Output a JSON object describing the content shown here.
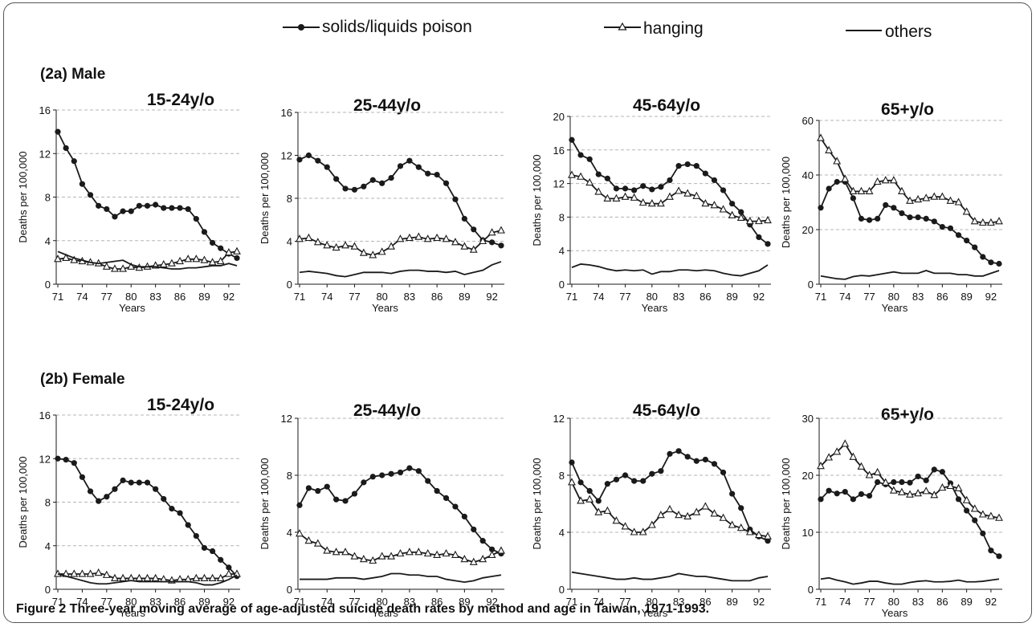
{
  "legend": [
    {
      "name": "solids/liquids poison",
      "marker": "circle"
    },
    {
      "name": "hanging",
      "marker": "triangle"
    },
    {
      "name": "others",
      "marker": "none"
    }
  ],
  "sections": {
    "male": "(2a) Male",
    "female": "(2b) Female"
  },
  "caption": {
    "label": "Figure 2",
    "text": " Three-year moving average of age-adjusted suicide death rates by method and age in Taiwan, 1971-1993."
  },
  "x_ticks": [
    "71",
    "74",
    "77",
    "80",
    "83",
    "86",
    "89",
    "92"
  ],
  "colors": {
    "line": "#1a1a1a",
    "grid": "#b5b5b5",
    "frame": "#555555"
  },
  "chart_data": [
    {
      "type": "line",
      "panel": "male-15-24",
      "title": "15-24y/o",
      "xlabel": "Years",
      "ylabel": "Deaths per 100,000",
      "ylim": [
        0,
        16
      ],
      "yticks": [
        0,
        4,
        8,
        12,
        16
      ],
      "x": [
        71,
        72,
        73,
        74,
        75,
        76,
        77,
        78,
        79,
        80,
        81,
        82,
        83,
        84,
        85,
        86,
        87,
        88,
        89,
        90,
        91,
        92,
        93
      ],
      "series": [
        {
          "name": "solids/liquids poison",
          "values": [
            14.0,
            12.5,
            11.3,
            9.2,
            8.2,
            7.2,
            6.9,
            6.2,
            6.7,
            6.7,
            7.2,
            7.2,
            7.3,
            7.0,
            7.0,
            7.0,
            6.9,
            6.0,
            4.8,
            3.8,
            3.3,
            2.8,
            2.4
          ]
        },
        {
          "name": "hanging",
          "values": [
            2.3,
            2.4,
            2.2,
            2.1,
            2.0,
            1.9,
            1.6,
            1.4,
            1.4,
            1.6,
            1.5,
            1.6,
            1.7,
            1.8,
            1.9,
            2.1,
            2.3,
            2.3,
            2.2,
            2.0,
            2.1,
            2.9,
            3.0
          ]
        },
        {
          "name": "others",
          "values": [
            3.0,
            2.7,
            2.4,
            2.2,
            2.0,
            1.9,
            2.0,
            2.1,
            2.2,
            1.8,
            1.6,
            1.6,
            1.6,
            1.5,
            1.4,
            1.4,
            1.5,
            1.5,
            1.6,
            1.7,
            1.7,
            1.9,
            1.7
          ]
        }
      ]
    },
    {
      "type": "line",
      "panel": "male-25-44",
      "title": "25-44y/o",
      "xlabel": "Years",
      "ylabel": "Deaths per 100,000",
      "ylim": [
        0,
        16
      ],
      "yticks": [
        0,
        4,
        8,
        12,
        16
      ],
      "x": [
        71,
        72,
        73,
        74,
        75,
        76,
        77,
        78,
        79,
        80,
        81,
        82,
        83,
        84,
        85,
        86,
        87,
        88,
        89,
        90,
        91,
        92,
        93
      ],
      "series": [
        {
          "name": "solids/liquids poison",
          "values": [
            11.6,
            12.0,
            11.5,
            10.9,
            9.8,
            8.9,
            8.8,
            9.1,
            9.7,
            9.4,
            9.9,
            11.0,
            11.5,
            10.9,
            10.3,
            10.2,
            9.4,
            7.9,
            6.1,
            5.1,
            4.1,
            3.9,
            3.6
          ]
        },
        {
          "name": "hanging",
          "values": [
            4.2,
            4.3,
            3.9,
            3.6,
            3.4,
            3.6,
            3.5,
            2.9,
            2.7,
            3.0,
            3.5,
            4.2,
            4.3,
            4.4,
            4.2,
            4.3,
            4.2,
            3.9,
            3.5,
            3.2,
            4.0,
            4.8,
            5.0
          ]
        },
        {
          "name": "others",
          "values": [
            1.1,
            1.2,
            1.1,
            1.0,
            0.8,
            0.7,
            0.9,
            1.1,
            1.1,
            1.1,
            1.0,
            1.2,
            1.3,
            1.3,
            1.2,
            1.2,
            1.1,
            1.2,
            0.9,
            1.1,
            1.3,
            1.8,
            2.1
          ]
        }
      ]
    },
    {
      "type": "line",
      "panel": "male-45-64",
      "title": "45-64y/o",
      "xlabel": "Years",
      "ylabel": "Deaths per 100,000",
      "ylim": [
        0,
        20
      ],
      "yticks": [
        0,
        4,
        8,
        12,
        16,
        20
      ],
      "x": [
        71,
        72,
        73,
        74,
        75,
        76,
        77,
        78,
        79,
        80,
        81,
        82,
        83,
        84,
        85,
        86,
        87,
        88,
        89,
        90,
        91,
        92,
        93
      ],
      "series": [
        {
          "name": "solids/liquids poison",
          "values": [
            17.2,
            15.4,
            14.9,
            13.1,
            12.6,
            11.4,
            11.4,
            11.2,
            11.7,
            11.3,
            11.6,
            12.4,
            14.1,
            14.3,
            14.1,
            13.2,
            12.4,
            11.2,
            9.6,
            8.6,
            7.1,
            5.6,
            4.8
          ]
        },
        {
          "name": "hanging",
          "values": [
            13.0,
            12.8,
            12.1,
            11.0,
            10.2,
            10.2,
            10.4,
            10.3,
            9.7,
            9.6,
            9.6,
            10.4,
            11.1,
            10.8,
            10.5,
            9.6,
            9.4,
            8.9,
            8.2,
            7.9,
            7.5,
            7.5,
            7.6
          ]
        },
        {
          "name": "others",
          "values": [
            2.0,
            2.4,
            2.3,
            2.1,
            1.8,
            1.6,
            1.7,
            1.6,
            1.7,
            1.2,
            1.5,
            1.5,
            1.7,
            1.7,
            1.6,
            1.7,
            1.6,
            1.3,
            1.1,
            1.0,
            1.3,
            1.6,
            2.3
          ]
        }
      ]
    },
    {
      "type": "line",
      "panel": "male-65plus",
      "title": "65+y/o",
      "xlabel": "Years",
      "ylabel": "Deaths per 100,000",
      "ylim": [
        0,
        60
      ],
      "yticks": [
        0,
        20,
        40,
        60
      ],
      "x": [
        71,
        72,
        73,
        74,
        75,
        76,
        77,
        78,
        79,
        80,
        81,
        82,
        83,
        84,
        85,
        86,
        87,
        88,
        89,
        90,
        91,
        92,
        93
      ],
      "series": [
        {
          "name": "solids/liquids poison",
          "values": [
            28,
            35,
            37.5,
            37.5,
            31.5,
            24,
            23.5,
            24,
            29,
            28,
            26,
            24.5,
            24.5,
            24,
            23,
            21,
            20.5,
            18,
            16,
            13.5,
            10,
            8,
            7.5
          ]
        },
        {
          "name": "hanging",
          "values": [
            53.5,
            49,
            45,
            38.5,
            34,
            34,
            34,
            37.5,
            38,
            38,
            34,
            30.5,
            31,
            31.5,
            32,
            32,
            30.5,
            30,
            26.5,
            23,
            22.5,
            22.5,
            23
          ]
        },
        {
          "name": "others",
          "values": [
            3,
            2.5,
            2,
            1.8,
            2.8,
            3.2,
            3,
            3.5,
            4,
            4.5,
            4,
            4,
            4,
            5,
            4,
            4,
            4,
            3.5,
            3.5,
            3,
            3,
            4,
            5
          ]
        }
      ]
    },
    {
      "type": "line",
      "panel": "female-15-24",
      "title": "15-24y/o",
      "xlabel": "Years",
      "ylabel": "Deaths per 100,000",
      "ylim": [
        0,
        16
      ],
      "yticks": [
        0,
        4,
        8,
        12,
        16
      ],
      "x": [
        71,
        72,
        73,
        74,
        75,
        76,
        77,
        78,
        79,
        80,
        81,
        82,
        83,
        84,
        85,
        86,
        87,
        88,
        89,
        90,
        91,
        92,
        93
      ],
      "series": [
        {
          "name": "solids/liquids poison",
          "values": [
            12.0,
            11.9,
            11.6,
            10.3,
            9.0,
            8.1,
            8.5,
            9.2,
            10.0,
            9.8,
            9.8,
            9.8,
            9.2,
            8.3,
            7.4,
            7.0,
            5.9,
            4.9,
            3.8,
            3.5,
            2.7,
            2.0,
            1.2
          ]
        },
        {
          "name": "hanging",
          "values": [
            1.4,
            1.4,
            1.4,
            1.4,
            1.4,
            1.5,
            1.3,
            1.0,
            1.0,
            1.0,
            1.0,
            1.0,
            1.0,
            0.9,
            0.8,
            0.9,
            0.9,
            1.0,
            1.0,
            1.0,
            1.0,
            1.4,
            1.4
          ]
        },
        {
          "name": "others",
          "values": [
            1.4,
            1.2,
            1.0,
            0.8,
            0.6,
            0.5,
            0.5,
            0.6,
            0.7,
            0.8,
            0.7,
            0.7,
            0.7,
            0.7,
            0.7,
            0.7,
            0.7,
            0.6,
            0.4,
            0.4,
            0.6,
            0.9,
            1.3
          ]
        }
      ]
    },
    {
      "type": "line",
      "panel": "female-25-44",
      "title": "25-44y/o",
      "xlabel": "Years",
      "ylabel": "Deaths per 100,000",
      "ylim": [
        0,
        12
      ],
      "yticks": [
        0,
        4,
        8,
        12
      ],
      "x": [
        71,
        72,
        73,
        74,
        75,
        76,
        77,
        78,
        79,
        80,
        81,
        82,
        83,
        84,
        85,
        86,
        87,
        88,
        89,
        90,
        91,
        92,
        93
      ],
      "series": [
        {
          "name": "solids/liquids poison",
          "values": [
            5.9,
            7.1,
            6.9,
            7.2,
            6.3,
            6.2,
            6.7,
            7.5,
            7.9,
            8.0,
            8.1,
            8.2,
            8.5,
            8.3,
            7.6,
            6.9,
            6.4,
            5.8,
            5.1,
            4.2,
            3.4,
            2.8,
            2.5
          ]
        },
        {
          "name": "hanging",
          "values": [
            3.9,
            3.4,
            3.2,
            2.7,
            2.6,
            2.6,
            2.3,
            2.1,
            2.0,
            2.3,
            2.3,
            2.5,
            2.6,
            2.6,
            2.5,
            2.4,
            2.5,
            2.4,
            2.1,
            1.9,
            2.1,
            2.4,
            2.7
          ]
        },
        {
          "name": "others",
          "values": [
            0.7,
            0.7,
            0.7,
            0.7,
            0.8,
            0.8,
            0.8,
            0.7,
            0.8,
            0.9,
            1.1,
            1.1,
            1.0,
            1.0,
            0.9,
            0.9,
            0.7,
            0.6,
            0.5,
            0.6,
            0.8,
            0.9,
            1.0
          ]
        }
      ]
    },
    {
      "type": "line",
      "panel": "female-45-64",
      "title": "45-64y/o",
      "xlabel": "Years",
      "ylabel": "Deaths per 100,000",
      "ylim": [
        0,
        12
      ],
      "yticks": [
        0,
        4,
        8,
        12
      ],
      "x": [
        71,
        72,
        73,
        74,
        75,
        76,
        77,
        78,
        79,
        80,
        81,
        82,
        83,
        84,
        85,
        86,
        87,
        88,
        89,
        90,
        91,
        92,
        93
      ],
      "series": [
        {
          "name": "solids/liquids poison",
          "values": [
            8.9,
            7.5,
            6.9,
            6.2,
            7.4,
            7.7,
            8.0,
            7.6,
            7.6,
            8.1,
            8.3,
            9.5,
            9.7,
            9.3,
            9.0,
            9.1,
            8.8,
            8.2,
            6.7,
            5.7,
            4.2,
            3.7,
            3.4
          ]
        },
        {
          "name": "hanging",
          "values": [
            7.5,
            6.2,
            6.3,
            5.4,
            5.5,
            4.8,
            4.4,
            4.0,
            4.0,
            4.5,
            5.2,
            5.6,
            5.2,
            5.1,
            5.4,
            5.8,
            5.3,
            5.0,
            4.5,
            4.3,
            4.0,
            3.8,
            3.7
          ]
        },
        {
          "name": "others",
          "values": [
            1.2,
            1.1,
            1.0,
            0.9,
            0.8,
            0.7,
            0.7,
            0.8,
            0.7,
            0.7,
            0.8,
            0.9,
            1.1,
            1.0,
            0.9,
            0.9,
            0.8,
            0.7,
            0.6,
            0.6,
            0.6,
            0.8,
            0.9
          ]
        }
      ]
    },
    {
      "type": "line",
      "panel": "female-65plus",
      "title": "65+y/o",
      "xlabel": "Years",
      "ylabel": "Deaths per 100,000",
      "ylim": [
        0,
        30
      ],
      "yticks": [
        0,
        10,
        20,
        30
      ],
      "x": [
        71,
        72,
        73,
        74,
        75,
        76,
        77,
        78,
        79,
        80,
        81,
        82,
        83,
        84,
        85,
        86,
        87,
        88,
        89,
        90,
        91,
        92,
        93
      ],
      "series": [
        {
          "name": "solids/liquids poison",
          "values": [
            15.8,
            17.3,
            16.8,
            17.1,
            15.8,
            16.7,
            16.4,
            18.8,
            18.4,
            18.8,
            18.8,
            18.7,
            19.8,
            19.1,
            21.0,
            20.6,
            18.6,
            15.8,
            13.8,
            12.1,
            9.8,
            6.8,
            5.8
          ]
        },
        {
          "name": "hanging",
          "values": [
            21.6,
            23.1,
            24.1,
            25.5,
            23.2,
            21.5,
            20.0,
            20.5,
            18.7,
            17.3,
            17.0,
            16.6,
            16.8,
            17.2,
            16.5,
            17.8,
            18.1,
            17.7,
            15.6,
            14.1,
            13.1,
            12.8,
            12.5
          ]
        },
        {
          "name": "others",
          "values": [
            1.8,
            2.0,
            1.6,
            1.3,
            0.9,
            1.1,
            1.4,
            1.4,
            1.1,
            0.9,
            0.9,
            1.2,
            1.4,
            1.5,
            1.3,
            1.3,
            1.4,
            1.6,
            1.3,
            1.3,
            1.4,
            1.6,
            1.8
          ]
        }
      ]
    }
  ]
}
